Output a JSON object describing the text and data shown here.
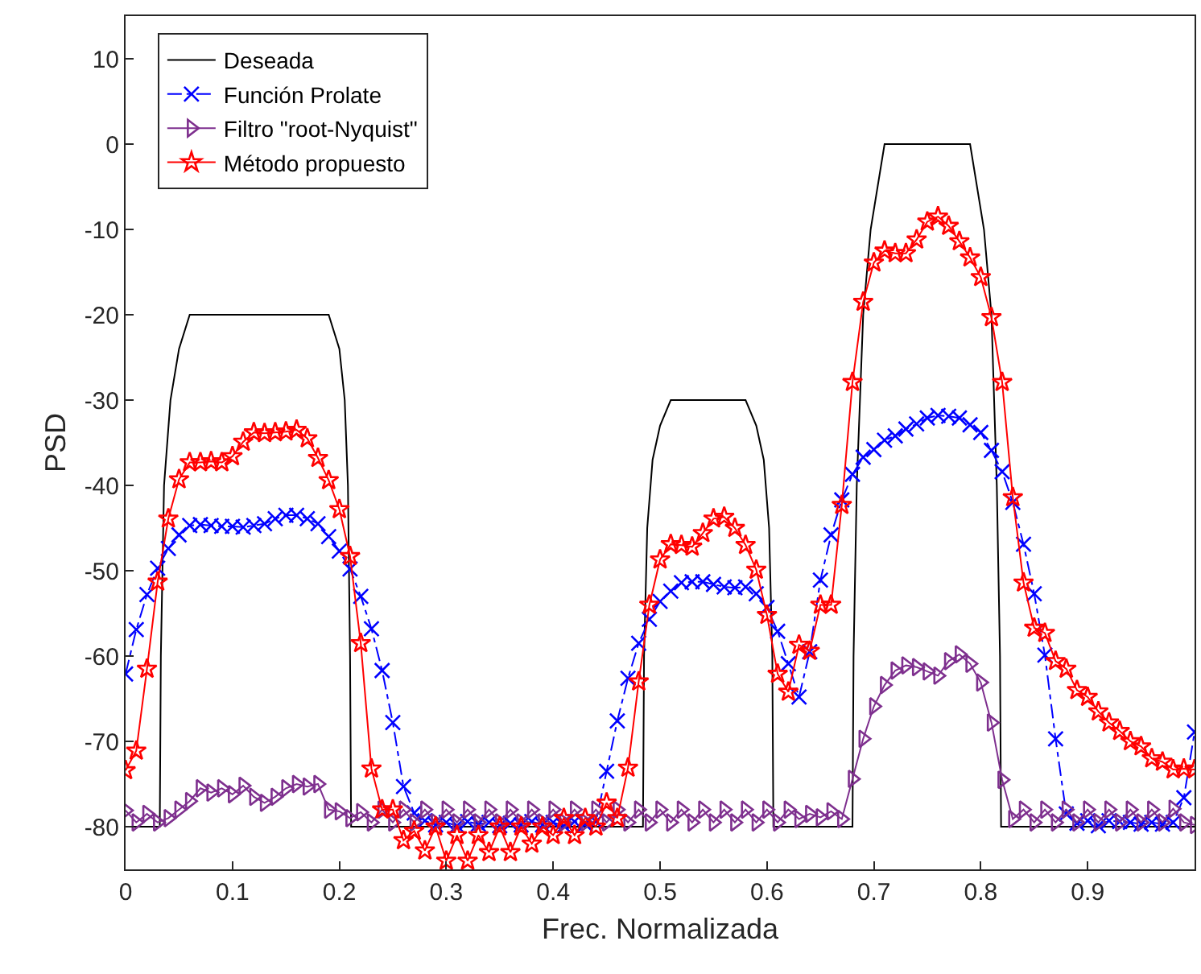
{
  "chart_data": {
    "type": "line",
    "xlabel": "Frec. Normalizada",
    "ylabel": "PSD",
    "xlim": [
      0,
      1
    ],
    "ylim": [
      -85,
      15
    ],
    "xticks": [
      0,
      0.1,
      0.2,
      0.3,
      0.4,
      0.5,
      0.6,
      0.7,
      0.8,
      0.9
    ],
    "yticks": [
      -80,
      -70,
      -60,
      -50,
      -40,
      -30,
      -20,
      -10,
      0,
      10
    ],
    "legend": "top left",
    "x": [
      0,
      0.01,
      0.02,
      0.03,
      0.04,
      0.05,
      0.06,
      0.07,
      0.08,
      0.09,
      0.1,
      0.11,
      0.12,
      0.13,
      0.14,
      0.15,
      0.16,
      0.17,
      0.18,
      0.19,
      0.2,
      0.21,
      0.22,
      0.23,
      0.24,
      0.25,
      0.26,
      0.27,
      0.28,
      0.29,
      0.3,
      0.31,
      0.32,
      0.33,
      0.34,
      0.35,
      0.36,
      0.37,
      0.38,
      0.39,
      0.4,
      0.41,
      0.42,
      0.43,
      0.44,
      0.45,
      0.46,
      0.47,
      0.48,
      0.49,
      0.5,
      0.51,
      0.52,
      0.53,
      0.54,
      0.55,
      0.56,
      0.57,
      0.58,
      0.59,
      0.6,
      0.61,
      0.62,
      0.63,
      0.64,
      0.65,
      0.66,
      0.67,
      0.68,
      0.69,
      0.7,
      0.71,
      0.72,
      0.73,
      0.74,
      0.75,
      0.76,
      0.77,
      0.78,
      0.79,
      0.8,
      0.81,
      0.82,
      0.83,
      0.84,
      0.85,
      0.86,
      0.87,
      0.88,
      0.89,
      0.9,
      0.91,
      0.92,
      0.93,
      0.94,
      0.95,
      0.96,
      0.97,
      0.98,
      0.99,
      1
    ],
    "series": [
      {
        "name": "Deseada",
        "color": "#000000",
        "marker": "none",
        "line_style": "solid",
        "x": [
          0,
          0.032,
          0.033,
          0.036,
          0.042,
          0.05,
          0.06,
          0.19,
          0.2,
          0.205,
          0.208,
          0.21,
          0.211,
          0.484,
          0.485,
          0.488,
          0.493,
          0.5,
          0.51,
          0.58,
          0.59,
          0.597,
          0.602,
          0.605,
          0.606,
          0.68,
          0.681,
          0.684,
          0.69,
          0.697,
          0.71,
          0.79,
          0.803,
          0.81,
          0.815,
          0.818,
          0.819,
          1
        ],
        "values": [
          -80,
          -80,
          -60,
          -40,
          -30,
          -24,
          -20,
          -20,
          -24,
          -30,
          -40,
          -60,
          -80,
          -80,
          -60,
          -45,
          -37,
          -33,
          -30,
          -30,
          -33,
          -37,
          -45,
          -60,
          -80,
          -80,
          -60,
          -40,
          -20,
          -10,
          0,
          0,
          -10,
          -20,
          -40,
          -60,
          -80,
          -80
        ]
      },
      {
        "name": "Función Prolate",
        "color": "#0000ff",
        "marker": "cross",
        "line_style": "dashdot",
        "values": [
          -62.1,
          -56.9,
          -52.8,
          -49.7,
          -47.4,
          -45.8,
          -44.7,
          -44.6,
          -44.7,
          -44.8,
          -44.8,
          -44.9,
          -44.7,
          -44.5,
          -43.9,
          -43.5,
          -43.5,
          -43.9,
          -44.5,
          -46,
          -47.7,
          -49.8,
          -53,
          -56.8,
          -61.7,
          -67.8,
          -75.3,
          -78.4,
          -79.3,
          -79.8,
          -79.5,
          -79.9,
          -79.4,
          -79.7,
          -79.5,
          -79.9,
          -79.6,
          -79.8,
          -79.4,
          -79.8,
          -79.5,
          -79.9,
          -79.4,
          -79.7,
          -79.4,
          -73.5,
          -67.6,
          -62.6,
          -58.5,
          -55.7,
          -53.6,
          -52.4,
          -51.4,
          -51.3,
          -51.3,
          -51.6,
          -51.9,
          -52,
          -51.9,
          -52.7,
          -54.3,
          -57.1,
          -60.9,
          -64.8,
          -59.5,
          -51.1,
          -45.8,
          -41.7,
          -38.7,
          -36.7,
          -35.8,
          -34.7,
          -34.2,
          -33.4,
          -32.8,
          -32.1,
          -31.8,
          -31.9,
          -32.1,
          -32.9,
          -33.8,
          -35.9,
          -38.4,
          -42,
          -46.9,
          -52.7,
          -59.9,
          -69.7,
          -78.5,
          -79.6,
          -79.3,
          -79.9,
          -79.3,
          -79.4,
          -79.5,
          -79.7,
          -79.5,
          -79.7,
          -79.5,
          -76.6,
          -68.9
        ]
      },
      {
        "name": "Filtro \"root-Nyquist\"",
        "color": "#7e2f8e",
        "marker": "triangle",
        "line_style": "solid",
        "values": [
          -78.1,
          -79.5,
          -78.5,
          -79.5,
          -79,
          -78,
          -77,
          -75.5,
          -76,
          -75.5,
          -76.2,
          -75.2,
          -76.5,
          -77.2,
          -76.5,
          -75.5,
          -75,
          -75.3,
          -75,
          -78,
          -78.2,
          -79,
          -78.3,
          -79.5,
          -78,
          -79.5,
          -78,
          -79.5,
          -78,
          -79.5,
          -78,
          -79.5,
          -78,
          -79.5,
          -78,
          -79.5,
          -78,
          -79.5,
          -78,
          -79.5,
          -78,
          -79.5,
          -78,
          -79.5,
          -78,
          -79.5,
          -78,
          -79.5,
          -78,
          -79.5,
          -78,
          -79.5,
          -78,
          -79.5,
          -78,
          -79.5,
          -78,
          -79.5,
          -78,
          -79.5,
          -78,
          -79.5,
          -78,
          -79.1,
          -78.5,
          -78.9,
          -78.2,
          -79.1,
          -74.4,
          -69.7,
          -65.9,
          -63.4,
          -61.7,
          -61.1,
          -61.3,
          -61.8,
          -62.3,
          -60.6,
          -59.8,
          -60.9,
          -63.1,
          -67.8,
          -74.5,
          -79.1,
          -78,
          -79.5,
          -78,
          -79.5,
          -78,
          -79.5,
          -78,
          -79.5,
          -78,
          -79.5,
          -78,
          -79.5,
          -78,
          -79.5,
          -77.9,
          -79.5,
          -79.8
        ]
      },
      {
        "name": "Método propuesto",
        "color": "#ff0000",
        "marker": "star",
        "line_style": "solid",
        "values": [
          -73.4,
          -71.1,
          -61.5,
          -51.3,
          -43.9,
          -39.3,
          -37.3,
          -37.3,
          -37.2,
          -37.3,
          -36.6,
          -34.9,
          -33.8,
          -33.9,
          -33.8,
          -33.7,
          -33.5,
          -34.5,
          -36.8,
          -39.4,
          -42.8,
          -48.3,
          -58.5,
          -73.2,
          -78,
          -78,
          -81.6,
          -80.5,
          -82.8,
          -80,
          -84,
          -81,
          -84,
          -81,
          -83,
          -80,
          -83,
          -80,
          -82,
          -80,
          -81,
          -79,
          -81,
          -79,
          -80,
          -77.2,
          -79,
          -73.1,
          -63,
          -54,
          -48.7,
          -46.9,
          -47,
          -47.2,
          -45.6,
          -43.9,
          -43.7,
          -45,
          -47,
          -49.9,
          -55.2,
          -62.1,
          -64.2,
          -58.7,
          -59.4,
          -54,
          -54,
          -42.3,
          -27.9,
          -18.5,
          -13.9,
          -12.5,
          -12.8,
          -12.8,
          -11.2,
          -9.1,
          -8.5,
          -9.6,
          -11.4,
          -13.3,
          -15.6,
          -20.3,
          -27.9,
          -41.4,
          -51.4,
          -56.7,
          -57.3,
          -60.6,
          -61.5,
          -64,
          -64.8,
          -66.5,
          -67.8,
          -68.8,
          -70,
          -70.6,
          -72,
          -72.4,
          -73.3,
          -73.2,
          -73.3
        ]
      }
    ]
  }
}
